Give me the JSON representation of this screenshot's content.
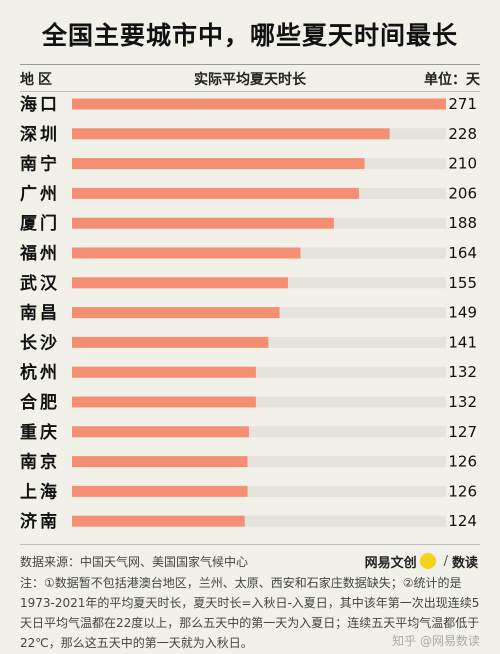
{
  "title": "全国主要城市中，哪些夏天时间最长",
  "header": {
    "region": "地区",
    "metric": "实际平均夏天时长",
    "unit": "单位：天"
  },
  "colors": {
    "bar": "#f58f73",
    "track": "#e6e2dc",
    "background": "#f1f0e9"
  },
  "chart_data": {
    "type": "bar",
    "orientation": "horizontal",
    "title": "全国主要城市中，哪些夏天时间最长",
    "categories": [
      "海口",
      "深圳",
      "南宁",
      "广州",
      "厦门",
      "福州",
      "武汉",
      "南昌",
      "长沙",
      "杭州",
      "合肥",
      "重庆",
      "南京",
      "上海",
      "济南"
    ],
    "values": [
      271,
      228,
      210,
      206,
      188,
      164,
      155,
      149,
      141,
      132,
      132,
      127,
      126,
      126,
      124
    ],
    "xlim": [
      0,
      290
    ],
    "unit": "单位：天"
  },
  "source": "数据来源：中国天气网、美国国家气候中心",
  "brand": {
    "name": "网易文创",
    "separator": "/",
    "section": "数读"
  },
  "note": "注：①数据暂不包括港澳台地区，兰州、太原、西安和石家庄数据缺失；②统计的是1973-2021年的平均夏天时长，夏天时长=入秋日-入夏日，其中该年第一次出现连续5天日平均气温都在22度以上，那么五天中的第一天为入夏日；连续五天平均气温都低于22℃，那么这五天中的第一天就为入秋日。",
  "watermark": "知乎 @网易数读"
}
